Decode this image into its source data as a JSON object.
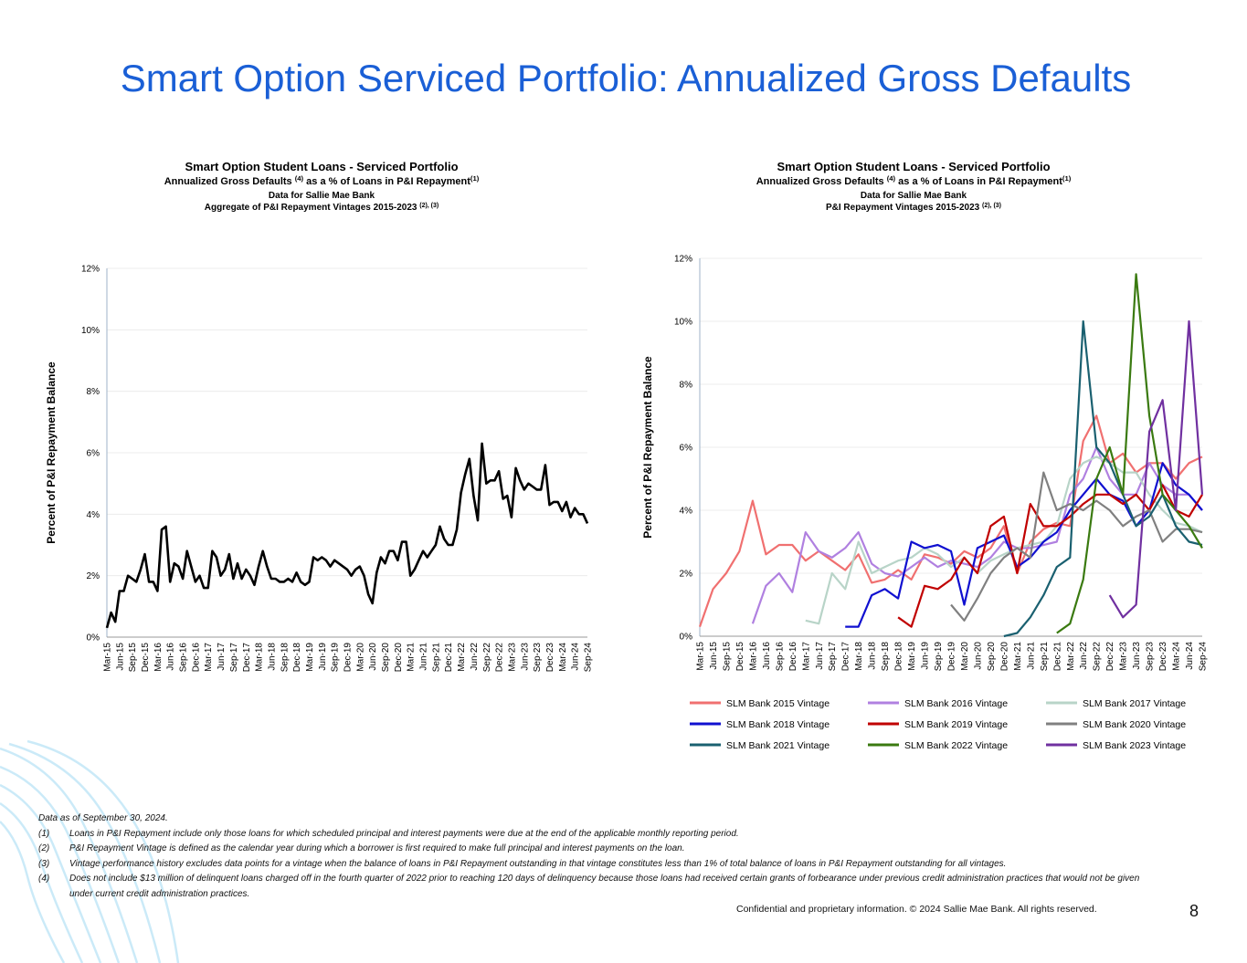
{
  "title": "Smart Option Serviced Portfolio: Annualized Gross Defaults",
  "chart_data": [
    {
      "type": "line",
      "title": "Smart Option Student Loans - Serviced Portfolio",
      "subtitle": [
        "Annualized Gross Defaults ",
        "(4)",
        " as a % of Loans in P&I Repayment",
        "(1)"
      ],
      "note": "Data for Sallie Mae Bank",
      "vintage_note": [
        "Aggregate of P&I Repayment Vintages 2015-2023 ",
        "(2), (3)"
      ],
      "y_label": "Percent of P&I Repayment Balance",
      "ylim": [
        0,
        12
      ],
      "yticks": [
        {
          "value": 0,
          "label": "0%"
        },
        {
          "value": 2,
          "label": "2%"
        },
        {
          "value": 4,
          "label": "4%"
        },
        {
          "value": 6,
          "label": "6%"
        },
        {
          "value": 8,
          "label": "8%"
        },
        {
          "value": 10,
          "label": "10%"
        },
        {
          "value": 12,
          "label": "12%"
        }
      ],
      "grid": true,
      "categories": [
        "Mar-15",
        null,
        null,
        "Jun-15",
        null,
        null,
        "Sep-15",
        null,
        null,
        "Dec-15",
        null,
        null,
        "Mar-16",
        null,
        null,
        "Jun-16",
        null,
        null,
        "Sep-16",
        null,
        null,
        "Dec-16",
        null,
        null,
        "Mar-17",
        null,
        null,
        "Jun-17",
        null,
        null,
        "Sep-17",
        null,
        null,
        "Dec-17",
        null,
        null,
        "Mar-18",
        null,
        null,
        "Jun-18",
        null,
        null,
        "Sep-18",
        null,
        null,
        "Dec-18",
        null,
        null,
        "Mar-19",
        null,
        null,
        "Jun-19",
        null,
        null,
        "Sep-19",
        null,
        null,
        "Dec-19",
        null,
        null,
        "Mar-20",
        null,
        null,
        "Jun-20",
        null,
        null,
        "Sep-20",
        null,
        null,
        "Dec-20",
        null,
        null,
        "Mar-21",
        null,
        null,
        "Jun-21",
        null,
        null,
        "Sep-21",
        null,
        null,
        "Dec-21",
        null,
        null,
        "Mar-22",
        null,
        null,
        "Jun-22",
        null,
        null,
        "Sep-22",
        null,
        null,
        "Dec-22",
        null,
        null,
        "Mar-23",
        null,
        null,
        "Jun-23",
        null,
        null,
        "Sep-23",
        null,
        null,
        "Dec-23",
        null,
        null,
        "Mar-24",
        null,
        null,
        "Jun-24",
        null,
        null,
        "Sep-24"
      ],
      "series": [
        {
          "color": "#000000",
          "values": [
            0.3,
            0.8,
            0.5,
            1.5,
            1.5,
            2.0,
            1.9,
            1.8,
            2.2,
            2.7,
            1.8,
            1.8,
            1.5,
            3.5,
            3.6,
            1.8,
            2.4,
            2.3,
            1.9,
            2.8,
            2.3,
            1.8,
            2.0,
            1.6,
            1.6,
            2.8,
            2.6,
            2.0,
            2.2,
            2.7,
            1.9,
            2.4,
            1.9,
            2.2,
            2.0,
            1.7,
            2.3,
            2.8,
            2.3,
            1.9,
            1.9,
            1.8,
            1.8,
            1.9,
            1.8,
            2.1,
            1.8,
            1.7,
            1.8,
            2.6,
            2.5,
            2.6,
            2.5,
            2.3,
            2.5,
            2.4,
            2.3,
            2.2,
            2.0,
            2.2,
            2.3,
            2.0,
            1.4,
            1.1,
            2.1,
            2.6,
            2.4,
            2.8,
            2.8,
            2.5,
            3.1,
            3.1,
            2.0,
            2.2,
            2.5,
            2.8,
            2.6,
            2.8,
            3.0,
            3.6,
            3.2,
            3.0,
            3.0,
            3.5,
            4.7,
            5.3,
            5.8,
            4.6,
            3.8,
            6.3,
            5.0,
            5.1,
            5.1,
            5.4,
            4.5,
            4.6,
            3.9,
            5.5,
            5.1,
            4.8,
            5.0,
            4.9,
            4.8,
            4.8,
            5.6,
            4.3,
            4.4,
            4.4,
            4.1,
            4.4,
            3.9,
            4.2,
            4.0,
            4.0,
            3.7
          ]
        }
      ]
    },
    {
      "type": "line",
      "title": "Smart Option Student Loans - Serviced Portfolio",
      "subtitle": [
        "Annualized Gross Defaults ",
        "(4)",
        " as a % of Loans in P&I Repayment",
        "(1)"
      ],
      "note": "Data for Sallie Mae Bank",
      "vintage_note": [
        "P&I Repayment Vintages 2015-2023 ",
        "(2), (3)"
      ],
      "y_label": "Percent of P&I Repayment Balance",
      "ylim": [
        0,
        12
      ],
      "yticks": [
        {
          "value": 0,
          "label": "0%"
        },
        {
          "value": 2,
          "label": "2%"
        },
        {
          "value": 4,
          "label": "4%"
        },
        {
          "value": 6,
          "label": "6%"
        },
        {
          "value": 8,
          "label": "8%"
        },
        {
          "value": 10,
          "label": "10%"
        },
        {
          "value": 12,
          "label": "12%"
        }
      ],
      "grid": true,
      "legend": "bottom",
      "categories": [
        "Mar-15",
        "Jun-15",
        "Sep-15",
        "Dec-15",
        "Mar-16",
        "Jun-16",
        "Sep-16",
        "Dec-16",
        "Mar-17",
        "Jun-17",
        "Sep-17",
        "Dec-17",
        "Mar-18",
        "Jun-18",
        "Sep-18",
        "Dec-18",
        "Mar-19",
        "Jun-19",
        "Sep-19",
        "Dec-19",
        "Mar-20",
        "Jun-20",
        "Sep-20",
        "Dec-20",
        "Mar-21",
        "Jun-21",
        "Sep-21",
        "Dec-21",
        "Mar-22",
        "Jun-22",
        "Sep-22",
        "Dec-22",
        "Mar-23",
        "Jun-23",
        "Sep-23",
        "Dec-23",
        "Mar-24",
        "Jun-24",
        "Sep-24"
      ],
      "series": [
        {
          "name": "SLM Bank 2015 Vintage",
          "color": "#f07070",
          "values": [
            0.3,
            1.5,
            2.0,
            2.7,
            4.3,
            2.6,
            2.9,
            2.9,
            2.4,
            2.7,
            2.4,
            2.1,
            2.6,
            1.7,
            1.8,
            2.1,
            1.8,
            2.6,
            2.5,
            2.3,
            2.7,
            2.5,
            2.8,
            3.5,
            2.0,
            3.0,
            3.4,
            3.6,
            3.5,
            6.2,
            7.0,
            5.5,
            5.8,
            5.2,
            5.5,
            5.5,
            5.0,
            5.5,
            5.7
          ]
        },
        {
          "name": "SLM Bank 2016 Vintage",
          "color": "#b080e0",
          "values": [
            null,
            null,
            null,
            null,
            0.4,
            1.6,
            2.0,
            1.4,
            3.3,
            2.7,
            2.5,
            2.8,
            3.3,
            2.3,
            2.0,
            1.9,
            2.2,
            2.5,
            2.2,
            2.4,
            2.3,
            2.2,
            2.5,
            3.0,
            2.8,
            2.8,
            2.9,
            3.0,
            4.5,
            5.0,
            6.0,
            5.0,
            4.5,
            4.5,
            5.5,
            4.8,
            4.5,
            4.5,
            4.0
          ]
        },
        {
          "name": "SLM Bank 2017 Vintage",
          "color": "#b8d4c8",
          "values": [
            null,
            null,
            null,
            null,
            null,
            null,
            null,
            null,
            0.5,
            0.4,
            2.0,
            1.5,
            3.0,
            2.0,
            2.2,
            2.4,
            2.5,
            2.8,
            2.6,
            2.2,
            2.5,
            2.0,
            2.4,
            2.6,
            2.8,
            2.9,
            3.0,
            3.5,
            5.0,
            5.5,
            5.7,
            5.5,
            5.2,
            5.2,
            4.5,
            4.0,
            3.6,
            3.5,
            3.3
          ]
        },
        {
          "name": "SLM Bank 2018 Vintage",
          "color": "#1010d0",
          "values": [
            null,
            null,
            null,
            null,
            null,
            null,
            null,
            null,
            null,
            null,
            null,
            0.3,
            0.3,
            1.3,
            1.5,
            1.2,
            3.0,
            2.8,
            2.9,
            2.7,
            1.0,
            2.8,
            3.0,
            3.2,
            2.2,
            2.5,
            3.0,
            3.3,
            4.0,
            4.5,
            5.0,
            4.5,
            4.3,
            3.5,
            4.0,
            5.5,
            4.8,
            4.5,
            4.0
          ]
        },
        {
          "name": "SLM Bank 2019 Vintage",
          "color": "#c00000",
          "values": [
            null,
            null,
            null,
            null,
            null,
            null,
            null,
            null,
            null,
            null,
            null,
            null,
            null,
            null,
            null,
            0.6,
            0.3,
            1.6,
            1.5,
            1.8,
            2.5,
            2.0,
            3.5,
            3.8,
            2.0,
            4.2,
            3.5,
            3.5,
            3.8,
            4.2,
            4.5,
            4.5,
            4.2,
            4.5,
            4.0,
            4.8,
            4.0,
            3.8,
            4.5
          ]
        },
        {
          "name": "SLM Bank 2020 Vintage",
          "color": "#808080",
          "values": [
            null,
            null,
            null,
            null,
            null,
            null,
            null,
            null,
            null,
            null,
            null,
            null,
            null,
            null,
            null,
            null,
            null,
            null,
            null,
            1.0,
            0.5,
            1.2,
            2.0,
            2.5,
            2.8,
            2.5,
            5.2,
            4.0,
            4.2,
            4.0,
            4.3,
            4.0,
            3.5,
            3.8,
            4.0,
            3.0,
            3.4,
            3.4,
            3.3
          ]
        },
        {
          "name": "SLM Bank 2021 Vintage",
          "color": "#1a6070",
          "values": [
            null,
            null,
            null,
            null,
            null,
            null,
            null,
            null,
            null,
            null,
            null,
            null,
            null,
            null,
            null,
            null,
            null,
            null,
            null,
            null,
            null,
            null,
            null,
            0.0,
            0.1,
            0.6,
            1.3,
            2.2,
            2.5,
            10.0,
            6.0,
            5.5,
            4.5,
            3.5,
            3.8,
            4.5,
            3.5,
            3.0,
            2.9
          ]
        },
        {
          "name": "SLM Bank 2022 Vintage",
          "color": "#3a7a10",
          "values": [
            null,
            null,
            null,
            null,
            null,
            null,
            null,
            null,
            null,
            null,
            null,
            null,
            null,
            null,
            null,
            null,
            null,
            null,
            null,
            null,
            null,
            null,
            null,
            null,
            null,
            null,
            null,
            0.1,
            0.4,
            1.8,
            5.0,
            6.0,
            4.5,
            11.5,
            7.0,
            4.5,
            4.0,
            3.5,
            2.8
          ]
        },
        {
          "name": "SLM Bank 2023 Vintage",
          "color": "#7030a0",
          "values": [
            null,
            null,
            null,
            null,
            null,
            null,
            null,
            null,
            null,
            null,
            null,
            null,
            null,
            null,
            null,
            null,
            null,
            null,
            null,
            null,
            null,
            null,
            null,
            null,
            null,
            null,
            null,
            null,
            null,
            null,
            null,
            1.3,
            0.6,
            1.0,
            6.5,
            7.5,
            4.0,
            10.0,
            4.5
          ]
        }
      ]
    }
  ],
  "footnotes": {
    "date_note": "Data as of September 30, 2024.",
    "items": [
      {
        "marker": "(1)",
        "text": "Loans in P&I Repayment include only those loans for which scheduled principal and interest payments were due at the end of the applicable monthly reporting period."
      },
      {
        "marker": "(2)",
        "text": "P&I Repayment Vintage is defined as the calendar year during which a borrower is first required to make full principal and interest payments on the loan."
      },
      {
        "marker": "(3)",
        "text": "Vintage performance history excludes data points for a vintage when the balance of loans in P&I Repayment outstanding in that vintage constitutes less than 1% of total balance of loans in P&I Repayment outstanding for all vintages."
      },
      {
        "marker": "(4)",
        "text": "Does not include $13 million of delinquent loans charged off in the fourth quarter of 2022 prior to reaching 120 days of delinquency because those loans had received certain grants of forbearance under previous credit administration practices that would not be given under current credit administration practices."
      }
    ]
  },
  "confidential": "Confidential and proprietary information. © 2024 Sallie Mae Bank. All rights reserved.",
  "page_number": "8"
}
